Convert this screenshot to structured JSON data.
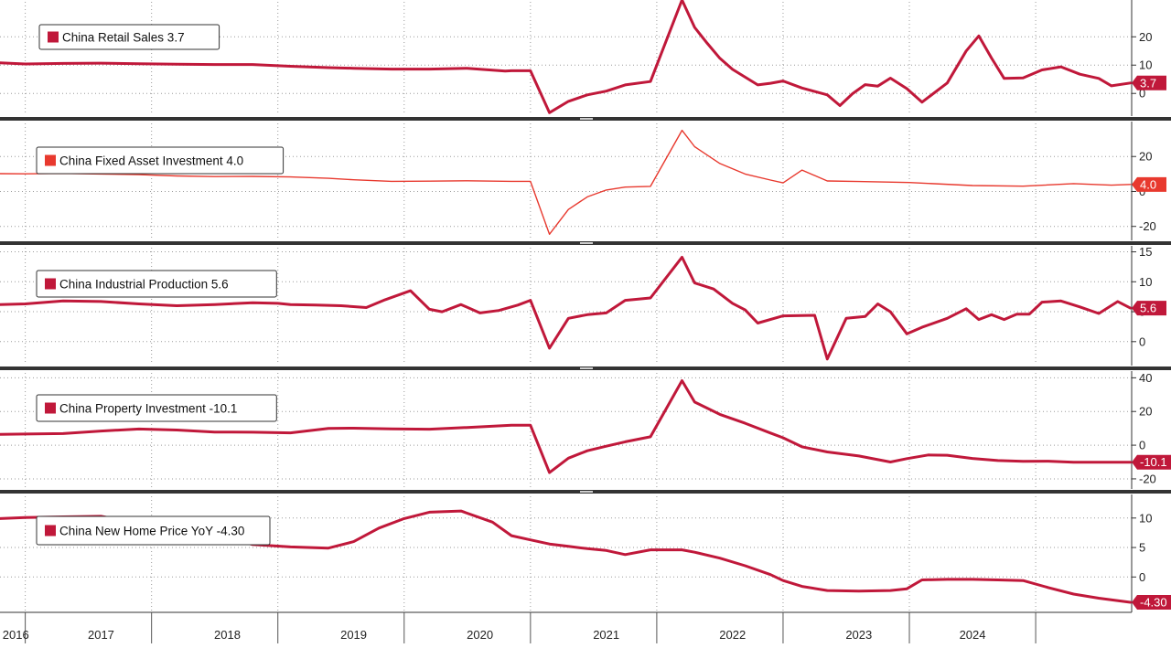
{
  "chart_data": [
    {
      "type": "line",
      "legend": "China Retail Sales 3.7",
      "last_value_label": "3.7",
      "color": "#c0183a",
      "line_weight": "thick",
      "ylim": [
        -8,
        33
      ],
      "yticks": [
        {
          "v": 20,
          "label": "20"
        },
        {
          "v": 10,
          "label": "10"
        },
        {
          "v": 0,
          "label": "0"
        }
      ],
      "x": [
        2015.8,
        2016.0,
        2016.3,
        2016.6,
        2016.9,
        2017.2,
        2017.5,
        2017.8,
        2018.1,
        2018.4,
        2018.6,
        2018.9,
        2019.2,
        2019.5,
        2019.8,
        2019.85,
        2020.0,
        2020.15,
        2020.3,
        2020.45,
        2020.6,
        2020.75,
        2020.95,
        2021.2,
        2021.3,
        2021.4,
        2021.5,
        2021.6,
        2021.8,
        2021.9,
        2022.0,
        2022.15,
        2022.25,
        2022.35,
        2022.45,
        2022.55,
        2022.65,
        2022.75,
        2022.85,
        2022.98,
        2023.1,
        2023.3,
        2023.45,
        2023.55,
        2023.65,
        2023.75,
        2023.9,
        2024.05,
        2024.2,
        2024.35,
        2024.5,
        2024.6,
        2024.75
      ],
      "y": [
        10.8,
        10.4,
        10.6,
        10.7,
        10.5,
        10.3,
        10.2,
        10.2,
        9.6,
        9.1,
        8.9,
        8.6,
        8.6,
        8.9,
        7.9,
        8.0,
        8.0,
        -6.8,
        -2.8,
        -0.5,
        0.8,
        3.0,
        4.2,
        33.0,
        23.3,
        17.7,
        12.4,
        8.5,
        3.0,
        3.6,
        4.4,
        1.9,
        0.7,
        -0.5,
        -4.3,
        -0.1,
        3.1,
        2.6,
        5.4,
        1.7,
        -3.1,
        3.7,
        15.0,
        20.3,
        12.5,
        5.3,
        5.5,
        8.3,
        9.4,
        6.8,
        5.3,
        2.7,
        3.7
      ]
    },
    {
      "type": "line",
      "legend": "China Fixed Asset Investment 4.0",
      "last_value_label": "4.0",
      "color": "#e8392e",
      "line_weight": "thin",
      "ylim": [
        -28,
        40
      ],
      "yticks": [
        {
          "v": 20,
          "label": "20"
        },
        {
          "v": 0,
          "label": "0"
        },
        {
          "v": -20,
          "label": "-20"
        }
      ],
      "x": [
        2015.8,
        2016.0,
        2016.3,
        2016.6,
        2016.9,
        2017.2,
        2017.5,
        2017.8,
        2018.1,
        2018.4,
        2018.6,
        2018.9,
        2019.2,
        2019.5,
        2019.85,
        2020.0,
        2020.15,
        2020.3,
        2020.45,
        2020.6,
        2020.75,
        2020.95,
        2021.2,
        2021.3,
        2021.5,
        2021.7,
        2021.9,
        2022.0,
        2022.15,
        2022.35,
        2022.6,
        2023.0,
        2023.5,
        2023.9,
        2024.3,
        2024.6,
        2024.75
      ],
      "y": [
        10.2,
        10.1,
        10.3,
        10.0,
        9.6,
        8.9,
        8.5,
        8.6,
        8.3,
        7.5,
        6.7,
        5.8,
        5.9,
        6.1,
        5.8,
        5.8,
        -24.5,
        -10.3,
        -3.1,
        0.8,
        2.5,
        2.9,
        35.0,
        25.6,
        16.0,
        10.0,
        6.5,
        4.9,
        12.2,
        6.0,
        5.7,
        5.1,
        3.4,
        3.0,
        4.5,
        3.6,
        4.0
      ]
    },
    {
      "type": "line",
      "legend": "China Industrial Production 5.6",
      "last_value_label": "5.6",
      "color": "#c0183a",
      "line_weight": "thick",
      "ylim": [
        -4,
        16
      ],
      "yticks": [
        {
          "v": 15,
          "label": "15"
        },
        {
          "v": 10,
          "label": "10"
        },
        {
          "v": 5,
          "label": "5"
        },
        {
          "v": 0,
          "label": "0"
        }
      ],
      "x": [
        2015.8,
        2016.0,
        2016.3,
        2016.6,
        2016.9,
        2017.2,
        2017.5,
        2017.8,
        2018.0,
        2018.1,
        2018.3,
        2018.5,
        2018.7,
        2018.85,
        2019.05,
        2019.2,
        2019.3,
        2019.45,
        2019.6,
        2019.75,
        2019.9,
        2020.0,
        2020.15,
        2020.3,
        2020.45,
        2020.6,
        2020.75,
        2020.95,
        2021.2,
        2021.3,
        2021.45,
        2021.6,
        2021.7,
        2021.8,
        2022.0,
        2022.25,
        2022.35,
        2022.5,
        2022.65,
        2022.75,
        2022.85,
        2022.98,
        2023.1,
        2023.3,
        2023.45,
        2023.55,
        2023.65,
        2023.75,
        2023.85,
        2023.95,
        2024.05,
        2024.2,
        2024.35,
        2024.5,
        2024.65,
        2024.75
      ],
      "y": [
        6.2,
        6.3,
        6.8,
        6.7,
        6.3,
        6.0,
        6.2,
        6.5,
        6.4,
        6.2,
        6.1,
        6.0,
        5.7,
        7.0,
        8.5,
        5.4,
        5.0,
        6.2,
        4.8,
        5.2,
        6.1,
        6.9,
        -1.1,
        3.9,
        4.5,
        4.8,
        6.9,
        7.3,
        14.1,
        9.8,
        8.8,
        6.4,
        5.3,
        3.1,
        4.3,
        4.4,
        -2.9,
        3.9,
        4.2,
        6.3,
        5.0,
        1.3,
        2.4,
        3.9,
        5.5,
        3.7,
        4.5,
        3.7,
        4.6,
        4.6,
        6.6,
        6.8,
        5.8,
        4.7,
        6.7,
        5.6
      ]
    },
    {
      "type": "line",
      "legend": "China Property Investment -10.1",
      "last_value_label": "-10.1",
      "color": "#c0183a",
      "line_weight": "thick",
      "ylim": [
        -26,
        44
      ],
      "yticks": [
        {
          "v": 40,
          "label": "40"
        },
        {
          "v": 20,
          "label": "20"
        },
        {
          "v": 0,
          "label": "0"
        },
        {
          "v": -20,
          "label": "-20"
        }
      ],
      "x": [
        2015.8,
        2016.0,
        2016.3,
        2016.6,
        2016.9,
        2017.2,
        2017.5,
        2017.8,
        2018.1,
        2018.4,
        2018.6,
        2018.9,
        2019.2,
        2019.5,
        2019.85,
        2020.0,
        2020.15,
        2020.3,
        2020.45,
        2020.6,
        2020.75,
        2020.95,
        2021.2,
        2021.3,
        2021.5,
        2021.7,
        2021.9,
        2022.0,
        2022.15,
        2022.35,
        2022.6,
        2022.85,
        2022.98,
        2023.15,
        2023.3,
        2023.5,
        2023.7,
        2023.9,
        2024.1,
        2024.3,
        2024.5,
        2024.75
      ],
      "y": [
        6.4,
        6.6,
        6.9,
        8.4,
        9.6,
        9.0,
        7.8,
        7.7,
        7.3,
        9.9,
        10.1,
        9.7,
        9.5,
        10.5,
        11.9,
        11.9,
        -16.3,
        -7.7,
        -3.3,
        -0.6,
        2.0,
        5.0,
        38.3,
        25.6,
        18.3,
        13.0,
        7.2,
        4.4,
        -1.0,
        -4.0,
        -6.4,
        -10.0,
        -8.0,
        -5.8,
        -6.0,
        -7.9,
        -9.1,
        -9.6,
        -9.5,
        -10.1,
        -10.1,
        -10.1
      ]
    },
    {
      "type": "line",
      "legend": "China New Home Price YoY -4.30",
      "last_value_label": "-4.30",
      "color": "#c0183a",
      "line_weight": "thick",
      "ylim": [
        -6,
        14
      ],
      "yticks": [
        {
          "v": 10,
          "label": "10"
        },
        {
          "v": 5,
          "label": "5"
        },
        {
          "v": 0,
          "label": "0"
        }
      ],
      "x": [
        2015.8,
        2016.0,
        2016.3,
        2016.6,
        2016.9,
        2017.2,
        2017.5,
        2017.8,
        2018.1,
        2018.4,
        2018.6,
        2018.8,
        2019.0,
        2019.2,
        2019.45,
        2019.7,
        2019.85,
        2020.0,
        2020.15,
        2020.3,
        2020.45,
        2020.6,
        2020.75,
        2020.95,
        2021.2,
        2021.3,
        2021.5,
        2021.7,
        2021.9,
        2022.0,
        2022.15,
        2022.35,
        2022.6,
        2022.85,
        2022.98,
        2023.1,
        2023.3,
        2023.5,
        2023.7,
        2023.9,
        2024.1,
        2024.3,
        2024.5,
        2024.75
      ],
      "y": [
        9.9,
        10.1,
        10.2,
        10.3,
        9.1,
        8.2,
        7.4,
        5.5,
        5.1,
        4.9,
        6.0,
        8.3,
        9.9,
        11.0,
        11.2,
        9.3,
        7.0,
        6.3,
        5.6,
        5.2,
        4.8,
        4.5,
        3.8,
        4.6,
        4.6,
        4.2,
        3.2,
        1.9,
        0.4,
        -0.6,
        -1.6,
        -2.3,
        -2.4,
        -2.3,
        -2.0,
        -0.5,
        -0.4,
        -0.4,
        -0.5,
        -0.6,
        -1.8,
        -2.9,
        -3.6,
        -4.3
      ]
    }
  ],
  "x_axis": {
    "labels": [
      "2016",
      "2017",
      "2018",
      "2019",
      "2020",
      "2021",
      "2022",
      "2023",
      "2024"
    ],
    "xlim": [
      2015.8,
      2024.76
    ]
  }
}
